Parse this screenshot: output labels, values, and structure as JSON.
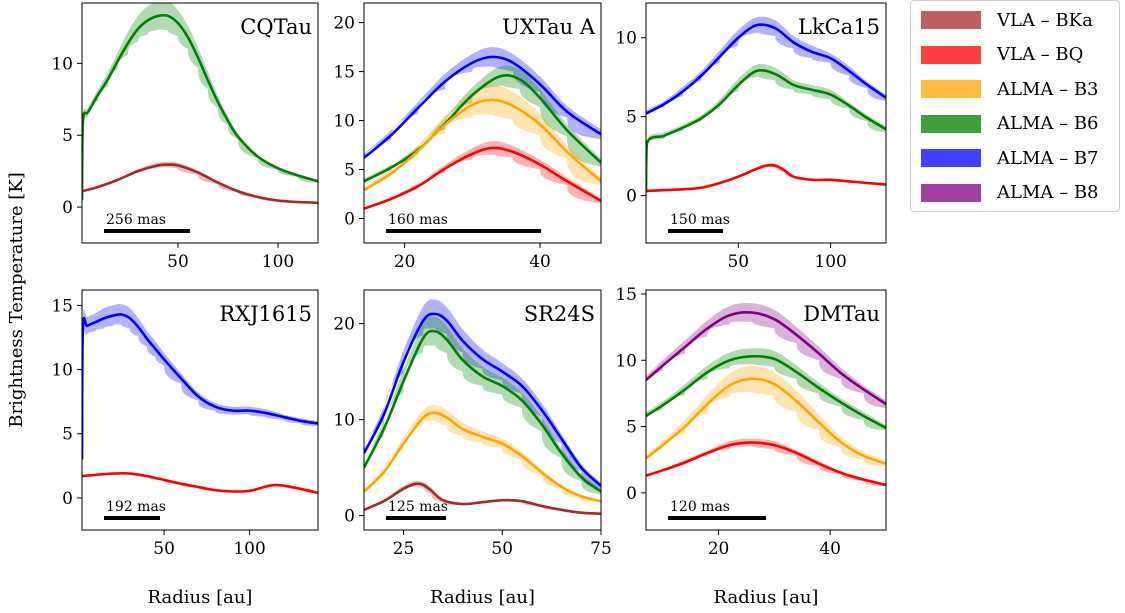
{
  "figure": {
    "ylabel": "Brightness Temperature [K]",
    "xlabel": "Radius [au]"
  },
  "legend": [
    {
      "label": "VLA – BKa",
      "color": "#a52a2a"
    },
    {
      "label": "VLA – BQ",
      "color": "#ff0000"
    },
    {
      "label": "ALMA – B3",
      "color": "#ffa500"
    },
    {
      "label": "ALMA – B6",
      "color": "#008000"
    },
    {
      "label": "ALMA – B7",
      "color": "#0000ff"
    },
    {
      "label": "ALMA – B8",
      "color": "#800080"
    }
  ],
  "chart_data": [
    {
      "type": "line",
      "title": "CQTau",
      "scalebar": "256 mas",
      "xlim": [
        2,
        120
      ],
      "ylim": [
        -2.5,
        14.2
      ],
      "xticks": [
        50,
        100
      ],
      "yticks": [
        0,
        5,
        10
      ],
      "series": [
        {
          "name": "ALMA – B6",
          "color": "#008000",
          "x": [
            2,
            2.5,
            5,
            10,
            15,
            20,
            25,
            30,
            35,
            40,
            45,
            50,
            55,
            60,
            65,
            70,
            75,
            80,
            90,
            100,
            110,
            120
          ],
          "y": [
            0.5,
            6.0,
            6.6,
            7.8,
            8.9,
            10.2,
            11.4,
            12.4,
            13.0,
            13.3,
            13.3,
            12.8,
            11.8,
            10.4,
            8.8,
            7.3,
            6.0,
            4.9,
            3.5,
            2.7,
            2.2,
            1.8
          ],
          "err": [
            0.1,
            0.3,
            0.3,
            0.4,
            0.5,
            0.6,
            0.8,
            0.9,
            1.0,
            1.0,
            1.0,
            0.9,
            0.8,
            0.7,
            0.6,
            0.4,
            0.3,
            0.2,
            0.1,
            0.1,
            0.1,
            0.1
          ]
        },
        {
          "name": "VLA – BKa",
          "color": "#a52a2a",
          "x": [
            2,
            10,
            20,
            30,
            40,
            45,
            50,
            60,
            70,
            80,
            90,
            100,
            110,
            120
          ],
          "y": [
            1.1,
            1.4,
            1.9,
            2.5,
            2.9,
            2.95,
            2.9,
            2.4,
            1.7,
            1.1,
            0.7,
            0.45,
            0.35,
            0.3
          ],
          "err": [
            0.05,
            0.05,
            0.1,
            0.15,
            0.2,
            0.2,
            0.2,
            0.15,
            0.1,
            0.05,
            0.05,
            0.05,
            0.05,
            0.05
          ]
        }
      ]
    },
    {
      "type": "line",
      "title": "UXTau A",
      "scalebar": "160 mas",
      "xlim": [
        14,
        49
      ],
      "ylim": [
        -2.5,
        22
      ],
      "xticks": [
        20,
        40
      ],
      "yticks": [
        0,
        5,
        10,
        15,
        20
      ],
      "series": [
        {
          "name": "ALMA – B7",
          "color": "#0000ff",
          "x": [
            14,
            18,
            22,
            26,
            30,
            33,
            36,
            40,
            44,
            49
          ],
          "y": [
            6.2,
            8.5,
            11.3,
            14.0,
            15.9,
            16.5,
            15.9,
            13.7,
            10.9,
            8.6
          ],
          "err": [
            0.4,
            0.5,
            0.6,
            0.8,
            0.9,
            1.0,
            0.9,
            0.8,
            0.6,
            0.5
          ]
        },
        {
          "name": "ALMA – B6",
          "color": "#008000",
          "x": [
            14,
            18,
            22,
            26,
            30,
            34,
            37,
            40,
            44,
            49
          ],
          "y": [
            3.8,
            5.2,
            7.0,
            9.7,
            12.6,
            14.5,
            14.2,
            12.3,
            9.0,
            5.7
          ],
          "err": [
            0.3,
            0.3,
            0.4,
            0.6,
            0.8,
            1.0,
            1.0,
            0.9,
            0.6,
            0.4
          ]
        },
        {
          "name": "ALMA – B3",
          "color": "#ffa500",
          "x": [
            14,
            18,
            22,
            26,
            30,
            33,
            36,
            40,
            44,
            49
          ],
          "y": [
            2.9,
            4.6,
            6.9,
            9.6,
            11.6,
            12.1,
            11.5,
            9.6,
            6.8,
            3.8
          ],
          "err": [
            0.3,
            0.4,
            0.6,
            0.9,
            1.3,
            1.5,
            1.4,
            1.1,
            0.7,
            0.4
          ]
        },
        {
          "name": "VLA – BQ",
          "color": "#ff0000",
          "x": [
            14,
            18,
            22,
            26,
            30,
            33,
            36,
            40,
            44,
            49
          ],
          "y": [
            1.0,
            2.0,
            3.3,
            5.1,
            6.6,
            7.2,
            6.8,
            5.5,
            3.8,
            1.8
          ],
          "err": [
            0.1,
            0.2,
            0.3,
            0.4,
            0.6,
            0.7,
            0.6,
            0.5,
            0.4,
            0.2
          ]
        }
      ]
    },
    {
      "type": "line",
      "title": "LkCa15",
      "scalebar": "150 mas",
      "xlim": [
        0,
        130
      ],
      "ylim": [
        -3.0,
        12.2
      ],
      "xticks": [
        50,
        100
      ],
      "yticks": [
        0,
        5,
        10
      ],
      "series": [
        {
          "name": "ALMA – B7",
          "color": "#0000ff",
          "x": [
            0,
            10,
            20,
            30,
            40,
            50,
            60,
            70,
            80,
            90,
            100,
            110,
            120,
            130
          ],
          "y": [
            5.2,
            5.8,
            6.6,
            7.6,
            8.8,
            10.0,
            10.8,
            10.6,
            9.7,
            9.1,
            8.7,
            7.9,
            7.0,
            6.2
          ],
          "err": [
            0.2,
            0.2,
            0.3,
            0.3,
            0.4,
            0.5,
            0.5,
            0.5,
            0.4,
            0.4,
            0.3,
            0.3,
            0.2,
            0.2
          ]
        },
        {
          "name": "ALMA – B6",
          "color": "#008000",
          "x": [
            0,
            0.5,
            10,
            20,
            30,
            40,
            50,
            60,
            70,
            80,
            90,
            100,
            110,
            120,
            130
          ],
          "y": [
            0.2,
            3.3,
            3.8,
            4.3,
            4.9,
            5.8,
            7.0,
            7.9,
            7.7,
            7.0,
            6.7,
            6.4,
            5.7,
            4.9,
            4.2
          ],
          "err": [
            0.1,
            0.2,
            0.2,
            0.2,
            0.2,
            0.3,
            0.4,
            0.4,
            0.4,
            0.3,
            0.3,
            0.3,
            0.2,
            0.2,
            0.2
          ]
        },
        {
          "name": "VLA – BQ",
          "color": "#ff0000",
          "x": [
            0,
            10,
            20,
            30,
            40,
            50,
            60,
            65,
            70,
            75,
            80,
            90,
            100,
            110,
            120,
            130
          ],
          "y": [
            0.3,
            0.35,
            0.4,
            0.5,
            0.8,
            1.2,
            1.7,
            1.9,
            1.9,
            1.6,
            1.2,
            1.0,
            1.0,
            0.9,
            0.8,
            0.7
          ],
          "err": [
            0.05,
            0.05,
            0.05,
            0.05,
            0.05,
            0.1,
            0.1,
            0.1,
            0.1,
            0.1,
            0.05,
            0.05,
            0.05,
            0.05,
            0.05,
            0.05
          ]
        }
      ]
    },
    {
      "type": "line",
      "title": "RXJ1615",
      "scalebar": "192 mas",
      "xlim": [
        2,
        140
      ],
      "ylim": [
        -2.5,
        16.2
      ],
      "xticks": [
        50,
        100
      ],
      "yticks": [
        0,
        5,
        10,
        15
      ],
      "series": [
        {
          "name": "ALMA – B7",
          "color": "#0000ff",
          "x": [
            2,
            2.5,
            5,
            10,
            15,
            20,
            25,
            30,
            35,
            40,
            45,
            50,
            60,
            70,
            80,
            90,
            100,
            110,
            120,
            130,
            140
          ],
          "y": [
            3.0,
            13.2,
            13.4,
            13.7,
            14.0,
            14.2,
            14.3,
            14.0,
            13.3,
            12.4,
            11.6,
            10.8,
            9.3,
            7.9,
            7.1,
            6.8,
            6.8,
            6.6,
            6.3,
            6.0,
            5.8
          ],
          "err": [
            0.2,
            0.7,
            0.7,
            0.7,
            0.8,
            0.8,
            0.8,
            0.8,
            0.7,
            0.6,
            0.6,
            0.5,
            0.4,
            0.3,
            0.3,
            0.3,
            0.3,
            0.3,
            0.2,
            0.2,
            0.2
          ]
        },
        {
          "name": "VLA – BQ",
          "color": "#ff0000",
          "x": [
            2,
            10,
            20,
            30,
            40,
            50,
            60,
            70,
            80,
            90,
            100,
            110,
            115,
            120,
            130,
            140
          ],
          "y": [
            1.7,
            1.8,
            1.9,
            1.9,
            1.7,
            1.4,
            1.1,
            0.85,
            0.6,
            0.5,
            0.55,
            0.9,
            1.0,
            0.95,
            0.7,
            0.4
          ],
          "err": [
            0.05,
            0.05,
            0.05,
            0.05,
            0.05,
            0.05,
            0.05,
            0.05,
            0.05,
            0.05,
            0.05,
            0.05,
            0.05,
            0.05,
            0.05,
            0.05
          ]
        }
      ]
    },
    {
      "type": "line",
      "title": "SR24S",
      "scalebar": "125 mas",
      "xlim": [
        15,
        75
      ],
      "ylim": [
        -1.5,
        23.5
      ],
      "xticks": [
        25,
        50,
        75
      ],
      "yticks": [
        0,
        10,
        20
      ],
      "series": [
        {
          "name": "ALMA – B7",
          "color": "#0000ff",
          "x": [
            15,
            20,
            25,
            30,
            33,
            36,
            40,
            45,
            50,
            55,
            60,
            65,
            70,
            75
          ],
          "y": [
            6.5,
            10.5,
            16.0,
            20.3,
            21.0,
            20.3,
            18.2,
            16.3,
            15.0,
            13.5,
            11.0,
            8.0,
            5.0,
            3.1
          ],
          "err": [
            0.5,
            0.8,
            1.2,
            1.5,
            1.5,
            1.4,
            1.2,
            1.0,
            0.9,
            0.8,
            0.7,
            0.5,
            0.4,
            0.3
          ]
        },
        {
          "name": "ALMA – B6",
          "color": "#008000",
          "x": [
            15,
            20,
            25,
            30,
            33,
            36,
            40,
            45,
            50,
            55,
            60,
            65,
            70,
            75
          ],
          "y": [
            5.0,
            9.0,
            14.0,
            18.5,
            19.2,
            18.3,
            16.2,
            14.5,
            13.5,
            12.0,
            9.5,
            6.5,
            4.0,
            2.5
          ],
          "err": [
            0.5,
            0.8,
            1.2,
            1.5,
            1.5,
            1.4,
            1.2,
            1.0,
            0.9,
            0.8,
            0.7,
            0.5,
            0.4,
            0.3
          ]
        },
        {
          "name": "ALMA – B3",
          "color": "#ffa500",
          "x": [
            15,
            20,
            25,
            30,
            33,
            36,
            40,
            45,
            50,
            55,
            60,
            65,
            70,
            75
          ],
          "y": [
            2.5,
            4.5,
            7.5,
            10.2,
            10.7,
            10.2,
            9.0,
            8.2,
            7.5,
            6.2,
            4.5,
            3.0,
            2.0,
            1.5
          ],
          "err": [
            0.3,
            0.4,
            0.6,
            0.8,
            0.8,
            0.8,
            0.7,
            0.6,
            0.5,
            0.4,
            0.3,
            0.2,
            0.2,
            0.1
          ]
        },
        {
          "name": "VLA – BKa",
          "color": "#a52a2a",
          "x": [
            15,
            20,
            25,
            28,
            30,
            32,
            35,
            40,
            45,
            50,
            55,
            60,
            65,
            70,
            75
          ],
          "y": [
            0.6,
            1.5,
            2.8,
            3.3,
            3.2,
            2.6,
            1.6,
            1.2,
            1.4,
            1.6,
            1.5,
            1.0,
            0.6,
            0.3,
            0.2
          ],
          "err": [
            0.1,
            0.2,
            0.3,
            0.3,
            0.3,
            0.3,
            0.2,
            0.1,
            0.1,
            0.1,
            0.1,
            0.1,
            0.05,
            0.05,
            0.05
          ]
        }
      ]
    },
    {
      "type": "line",
      "title": "DMTau",
      "scalebar": "120 mas",
      "xlim": [
        7,
        50
      ],
      "ylim": [
        -2.8,
        15.3
      ],
      "xticks": [
        20,
        40
      ],
      "yticks": [
        0,
        5,
        10,
        15
      ],
      "series": [
        {
          "name": "ALMA – B8",
          "color": "#800080",
          "x": [
            7,
            10,
            14,
            18,
            22,
            26,
            30,
            34,
            38,
            42,
            46,
            50
          ],
          "y": [
            8.5,
            9.6,
            11.0,
            12.4,
            13.4,
            13.6,
            13.1,
            11.9,
            10.5,
            9.0,
            7.8,
            6.7
          ],
          "err": [
            0.3,
            0.4,
            0.5,
            0.6,
            0.7,
            0.7,
            0.7,
            0.6,
            0.5,
            0.4,
            0.3,
            0.3
          ]
        },
        {
          "name": "ALMA – B6",
          "color": "#008000",
          "x": [
            7,
            10,
            14,
            18,
            22,
            26,
            30,
            34,
            38,
            42,
            46,
            50
          ],
          "y": [
            5.8,
            6.6,
            7.8,
            9.1,
            10.0,
            10.3,
            10.1,
            9.1,
            7.9,
            6.8,
            5.8,
            4.9
          ],
          "err": [
            0.3,
            0.3,
            0.4,
            0.5,
            0.6,
            0.6,
            0.6,
            0.5,
            0.4,
            0.3,
            0.3,
            0.2
          ]
        },
        {
          "name": "ALMA – B3",
          "color": "#ffa500",
          "x": [
            7,
            10,
            14,
            18,
            22,
            26,
            30,
            34,
            38,
            42,
            46,
            50
          ],
          "y": [
            2.6,
            3.6,
            5.0,
            6.7,
            8.1,
            8.6,
            8.2,
            6.9,
            5.3,
            3.8,
            2.8,
            2.2
          ],
          "err": [
            0.2,
            0.3,
            0.5,
            0.7,
            0.9,
            1.0,
            0.9,
            0.8,
            0.6,
            0.4,
            0.3,
            0.2
          ]
        },
        {
          "name": "VLA – BQ",
          "color": "#ff0000",
          "x": [
            7,
            10,
            14,
            18,
            22,
            26,
            30,
            34,
            38,
            42,
            46,
            50
          ],
          "y": [
            1.3,
            1.7,
            2.3,
            3.0,
            3.6,
            3.8,
            3.6,
            3.0,
            2.2,
            1.5,
            1.0,
            0.6
          ],
          "err": [
            0.1,
            0.1,
            0.2,
            0.2,
            0.3,
            0.3,
            0.3,
            0.2,
            0.2,
            0.1,
            0.1,
            0.1
          ]
        }
      ]
    }
  ]
}
